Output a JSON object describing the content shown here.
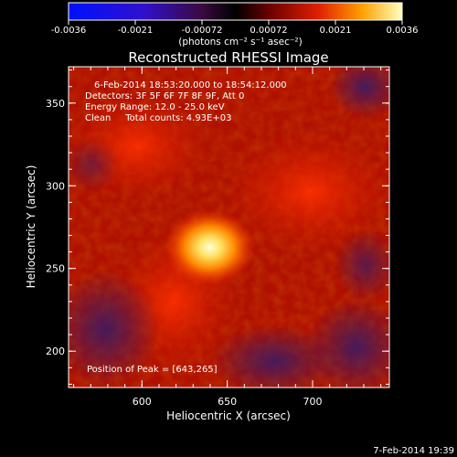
{
  "colorbar": {
    "ticks": [
      "-0.0036",
      "-0.0021",
      "-0.00072",
      "0.00072",
      "0.0021",
      "0.0036"
    ],
    "units": "(photons cm⁻² s⁻¹ asec⁻²)"
  },
  "title": "Reconstructed RHESSI Image",
  "annotations": {
    "time_range": "6-Feb-2014 18:53:20.000 to 18:54:12.000",
    "detectors": "Detectors: 3F 5F 6F 7F 8F 9F, Att 0",
    "energy": "Energy Range: 12.0 - 25.0 keV",
    "clean": "Clean     Total counts: 4.93E+03",
    "peak": "Position of Peak = [643,265]"
  },
  "axes": {
    "xlabel": "Heliocentric X (arcsec)",
    "ylabel": "Heliocentric Y (arcsec)",
    "xticks": [
      "600",
      "650",
      "700"
    ],
    "yticks": [
      "200",
      "250",
      "300",
      "350"
    ],
    "xlim": [
      557,
      745
    ],
    "ylim": [
      178,
      372
    ]
  },
  "peak": {
    "x": 643,
    "y": 265
  },
  "footer_timestamp": "7-Feb-2014 19:39"
}
